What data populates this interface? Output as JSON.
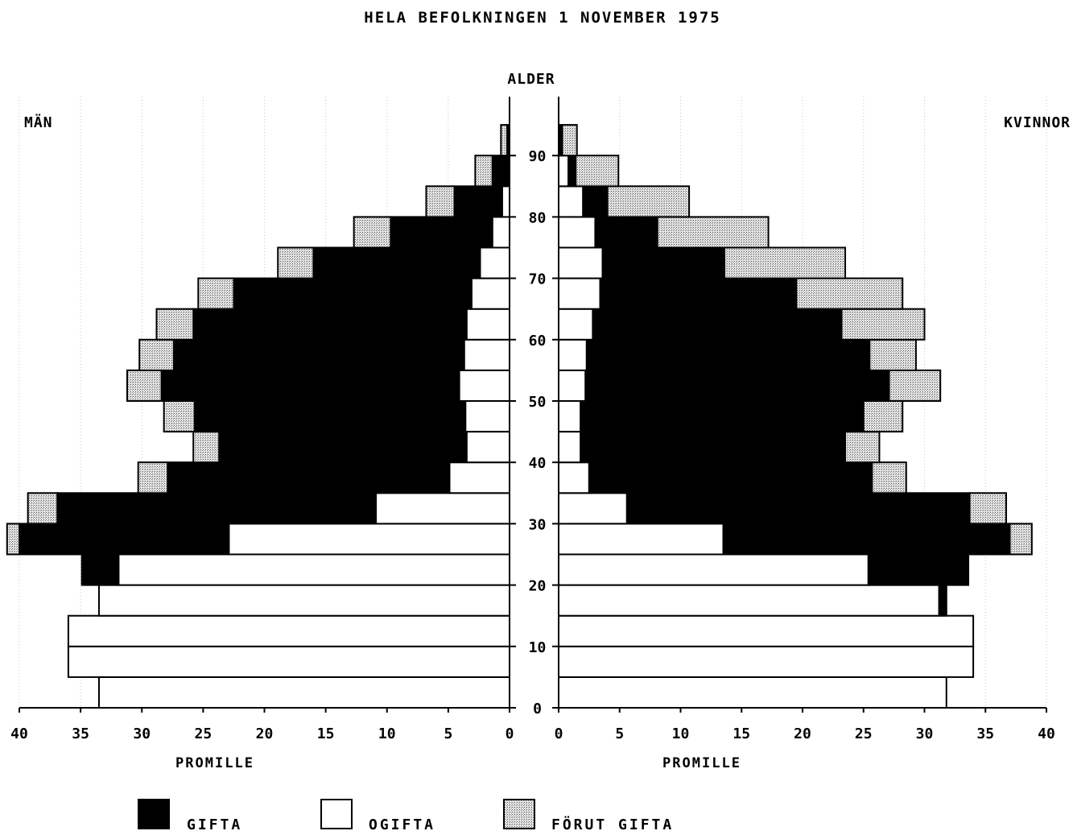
{
  "colors": {
    "gifta": "#000000",
    "ogifta": "#ffffff",
    "forut_gifta": "#cfcfcf",
    "outline": "#000000"
  },
  "chart_data": {
    "type": "bar",
    "title": "HELA BEFOLKNINGEN 1 NOVEMBER 1975",
    "ylabel": "ALDER",
    "xlabel": "PROMILLE",
    "left_label": "MÄN",
    "right_label": "KVINNOR",
    "xlim": [
      0,
      40
    ],
    "ylim": [
      0,
      100
    ],
    "x_ticks": [
      0,
      5,
      10,
      15,
      20,
      25,
      30,
      35,
      40
    ],
    "y_ticks": [
      0,
      10,
      20,
      30,
      40,
      50,
      60,
      70,
      80,
      90
    ],
    "grid": true,
    "legend_position": "bottom",
    "legend": [
      {
        "key": "gifta",
        "label": "GIFTA"
      },
      {
        "key": "ogifta",
        "label": "OGIFTA"
      },
      {
        "key": "forut_gifta",
        "label": "FÖRUT GIFTA"
      }
    ],
    "age_groups": [
      "0-4",
      "5-9",
      "10-14",
      "15-19",
      "20-24",
      "25-29",
      "30-34",
      "35-39",
      "40-44",
      "45-49",
      "50-54",
      "55-59",
      "60-64",
      "65-69",
      "70-74",
      "75-79",
      "80-84",
      "85-89",
      "90-94"
    ],
    "men": {
      "ogifta": [
        33.5,
        36.0,
        36.0,
        33.5,
        31.9,
        22.9,
        10.9,
        4.9,
        3.5,
        3.6,
        4.1,
        3.7,
        3.5,
        3.1,
        2.4,
        1.4,
        0.6,
        0.0,
        0.0
      ],
      "gifta": [
        0.0,
        0.0,
        0.0,
        0.0,
        3.0,
        17.1,
        26.0,
        23.0,
        20.2,
        22.1,
        24.3,
        23.7,
        22.3,
        19.4,
        13.6,
        8.3,
        3.9,
        1.4,
        0.2
      ],
      "forut_gifta": [
        0.0,
        0.0,
        0.0,
        0.0,
        0.0,
        1.0,
        2.4,
        2.4,
        2.1,
        2.5,
        2.8,
        2.8,
        3.0,
        2.9,
        2.9,
        3.0,
        2.3,
        1.4,
        0.5
      ]
    },
    "women": {
      "ogifta": [
        31.8,
        34.0,
        34.0,
        31.2,
        25.4,
        13.5,
        5.6,
        2.5,
        1.8,
        1.8,
        2.2,
        2.3,
        2.8,
        3.4,
        3.6,
        3.0,
        2.0,
        0.8,
        0.1
      ],
      "gifta": [
        0.0,
        0.0,
        0.0,
        0.6,
        8.2,
        23.5,
        28.1,
        23.2,
        21.7,
        23.2,
        24.9,
        23.2,
        20.4,
        16.1,
        10.0,
        5.1,
        2.0,
        0.6,
        0.2
      ],
      "forut_gifta": [
        0.0,
        0.0,
        0.0,
        0.0,
        0.0,
        1.8,
        3.0,
        2.8,
        2.8,
        3.2,
        4.2,
        3.8,
        6.8,
        8.7,
        9.9,
        9.1,
        6.7,
        3.5,
        1.2
      ]
    }
  }
}
